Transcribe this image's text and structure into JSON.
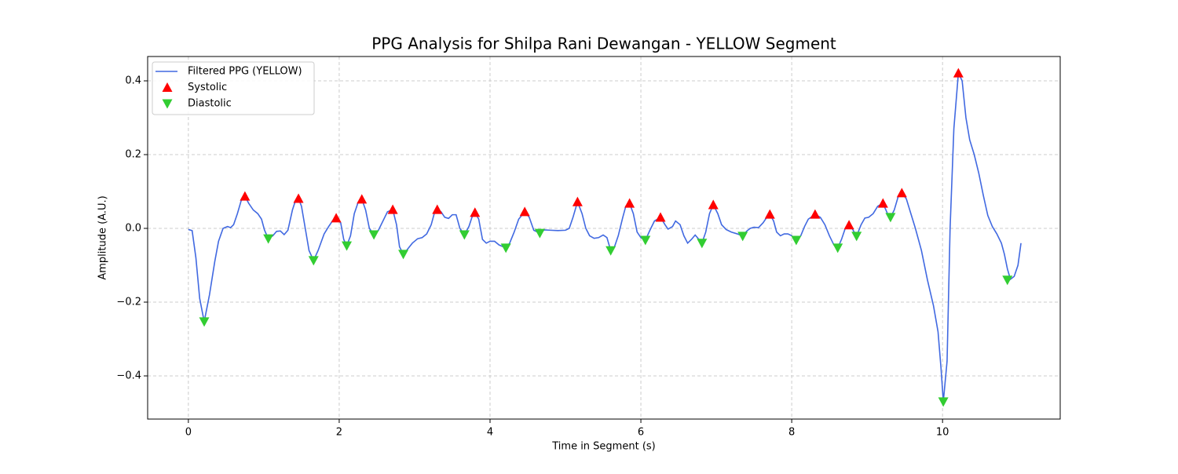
{
  "chart_data": {
    "type": "line",
    "title": "PPG Analysis for Shilpa Rani Dewangan - YELLOW Segment",
    "xlabel": "Time in Segment (s)",
    "ylabel": "Amplitude (A.U.)",
    "xlim": [
      -0.54,
      11.56
    ],
    "ylim": [
      -0.517,
      0.466
    ],
    "xticks": [
      0,
      2,
      4,
      6,
      8,
      10
    ],
    "yticks": [
      {
        "value": -0.4,
        "label": "−0.4"
      },
      {
        "value": -0.2,
        "label": "−0.2"
      },
      {
        "value": 0,
        "label": "0.0"
      },
      0.2,
      0.4
    ],
    "grid": true,
    "legend": "upper left",
    "series": [
      {
        "name": "Filtered PPG (YELLOW)",
        "color": "#4169e1",
        "kind": "line",
        "x": [
          0,
          0.05,
          0.1,
          0.15,
          0.21,
          0.28,
          0.35,
          0.4,
          0.46,
          0.52,
          0.56,
          0.6,
          0.65,
          0.7,
          0.75,
          0.8,
          0.86,
          0.92,
          0.97,
          1.01,
          1.06,
          1.12,
          1.17,
          1.22,
          1.27,
          1.32,
          1.38,
          1.42,
          1.46,
          1.5,
          1.55,
          1.6,
          1.66,
          1.72,
          1.8,
          1.86,
          1.91,
          1.96,
          2.02,
          2.06,
          2.1,
          2.15,
          2.2,
          2.25,
          2.3,
          2.35,
          2.4,
          2.46,
          2.52,
          2.58,
          2.64,
          2.71,
          2.76,
          2.8,
          2.85,
          2.9,
          2.97,
          3.04,
          3.1,
          3.16,
          3.22,
          3.26,
          3.3,
          3.35,
          3.4,
          3.45,
          3.5,
          3.55,
          3.6,
          3.66,
          3.72,
          3.76,
          3.8,
          3.85,
          3.9,
          3.95,
          4.0,
          4.06,
          4.12,
          4.21,
          4.26,
          4.32,
          4.38,
          4.46,
          4.52,
          4.58,
          4.66,
          4.72,
          4.8,
          4.9,
          5.0,
          5.05,
          5.1,
          5.16,
          5.22,
          5.27,
          5.32,
          5.38,
          5.44,
          5.5,
          5.55,
          5.6,
          5.65,
          5.7,
          5.76,
          5.8,
          5.85,
          5.9,
          5.95,
          6.0,
          6.06,
          6.12,
          6.18,
          6.26,
          6.32,
          6.36,
          6.42,
          6.46,
          6.52,
          6.57,
          6.62,
          6.67,
          6.72,
          6.77,
          6.81,
          6.86,
          6.91,
          6.96,
          7.02,
          7.07,
          7.13,
          7.2,
          7.28,
          7.35,
          7.4,
          7.45,
          7.5,
          7.56,
          7.62,
          7.67,
          7.71,
          7.76,
          7.8,
          7.85,
          7.9,
          7.95,
          8.0,
          8.06,
          8.12,
          8.17,
          8.22,
          8.31,
          8.38,
          8.44,
          8.5,
          8.56,
          8.61,
          8.66,
          8.71,
          8.76,
          8.8,
          8.86,
          8.92,
          8.97,
          9.02,
          9.08,
          9.14,
          9.21,
          9.27,
          9.31,
          9.36,
          9.41,
          9.46,
          9.52,
          9.58,
          9.64,
          9.72,
          9.8,
          9.88,
          9.94,
          9.98,
          10.01,
          10.06,
          10.1,
          10.15,
          10.21,
          10.26,
          10.31,
          10.36,
          10.42,
          10.48,
          10.54,
          10.6,
          10.66,
          10.72,
          10.78,
          10.82,
          10.86,
          10.9,
          10.95,
          11.0,
          11.04
        ],
        "values": [
          -0.003,
          -0.006,
          -0.08,
          -0.19,
          -0.253,
          -0.18,
          -0.09,
          -0.035,
          0.0,
          0.005,
          0.002,
          0.01,
          0.04,
          0.075,
          0.087,
          0.068,
          0.05,
          0.04,
          0.025,
          -0.005,
          -0.028,
          -0.02,
          -0.008,
          -0.007,
          -0.017,
          -0.005,
          0.05,
          0.075,
          0.081,
          0.06,
          0.0,
          -0.06,
          -0.087,
          -0.06,
          -0.015,
          0.005,
          0.02,
          0.028,
          0.015,
          -0.03,
          -0.047,
          -0.02,
          0.04,
          0.07,
          0.079,
          0.05,
          0.0,
          -0.017,
          -0.005,
          0.02,
          0.045,
          0.051,
          0.01,
          -0.05,
          -0.07,
          -0.058,
          -0.04,
          -0.028,
          -0.025,
          -0.015,
          0.01,
          0.04,
          0.051,
          0.045,
          0.03,
          0.027,
          0.037,
          0.037,
          0.0,
          -0.017,
          0.005,
          0.03,
          0.043,
          0.025,
          -0.03,
          -0.04,
          -0.035,
          -0.035,
          -0.045,
          -0.053,
          -0.04,
          -0.01,
          0.025,
          0.045,
          0.03,
          -0.005,
          -0.013,
          -0.004,
          -0.005,
          -0.006,
          -0.005,
          0.0,
          0.03,
          0.072,
          0.04,
          0.0,
          -0.02,
          -0.027,
          -0.025,
          -0.018,
          -0.025,
          -0.06,
          -0.05,
          -0.02,
          0.03,
          0.06,
          0.068,
          0.04,
          -0.01,
          -0.025,
          -0.032,
          -0.005,
          0.02,
          0.03,
          0.01,
          -0.002,
          0.005,
          0.02,
          0.01,
          -0.02,
          -0.04,
          -0.03,
          -0.018,
          -0.03,
          -0.04,
          -0.01,
          0.04,
          0.064,
          0.04,
          0.01,
          -0.003,
          -0.01,
          -0.015,
          -0.021,
          -0.008,
          0.0,
          0.003,
          0.002,
          0.015,
          0.03,
          0.038,
          0.02,
          -0.01,
          -0.02,
          -0.015,
          -0.015,
          -0.02,
          -0.032,
          -0.02,
          0.005,
          0.025,
          0.038,
          0.03,
          0.01,
          -0.02,
          -0.045,
          -0.053,
          -0.03,
          0.0,
          0.009,
          0.0,
          -0.021,
          0.01,
          0.028,
          0.03,
          0.04,
          0.06,
          0.068,
          0.04,
          0.03,
          0.05,
          0.085,
          0.096,
          0.08,
          0.04,
          0.0,
          -0.06,
          -0.14,
          -0.21,
          -0.28,
          -0.38,
          -0.47,
          -0.36,
          0.0,
          0.27,
          0.421,
          0.4,
          0.3,
          0.24,
          0.2,
          0.15,
          0.09,
          0.035,
          0.005,
          -0.015,
          -0.04,
          -0.07,
          -0.11,
          -0.138,
          -0.13,
          -0.1,
          -0.04
        ]
      },
      {
        "name": "Systolic",
        "color": "#ff0000",
        "kind": "scatter",
        "marker": "triangle-up",
        "x": [
          0.75,
          1.46,
          1.96,
          2.3,
          2.71,
          3.3,
          3.8,
          4.46,
          5.16,
          5.85,
          6.26,
          6.96,
          7.71,
          8.31,
          8.76,
          9.21,
          9.46,
          10.21
        ],
        "values": [
          0.087,
          0.081,
          0.028,
          0.079,
          0.051,
          0.051,
          0.043,
          0.045,
          0.072,
          0.068,
          0.03,
          0.064,
          0.038,
          0.038,
          0.009,
          0.068,
          0.096,
          0.421
        ]
      },
      {
        "name": "Diastolic",
        "color": "#32cd32",
        "kind": "scatter",
        "marker": "triangle-down",
        "x": [
          0.21,
          1.06,
          1.66,
          2.1,
          2.46,
          2.85,
          3.66,
          4.21,
          4.66,
          5.6,
          6.06,
          6.81,
          7.35,
          8.06,
          8.61,
          8.86,
          9.31,
          10.01,
          10.86
        ],
        "values": [
          -0.253,
          -0.028,
          -0.087,
          -0.047,
          -0.017,
          -0.07,
          -0.017,
          -0.053,
          -0.013,
          -0.06,
          -0.032,
          -0.04,
          -0.021,
          -0.032,
          -0.053,
          -0.021,
          0.03,
          -0.47,
          -0.14
        ]
      }
    ]
  }
}
